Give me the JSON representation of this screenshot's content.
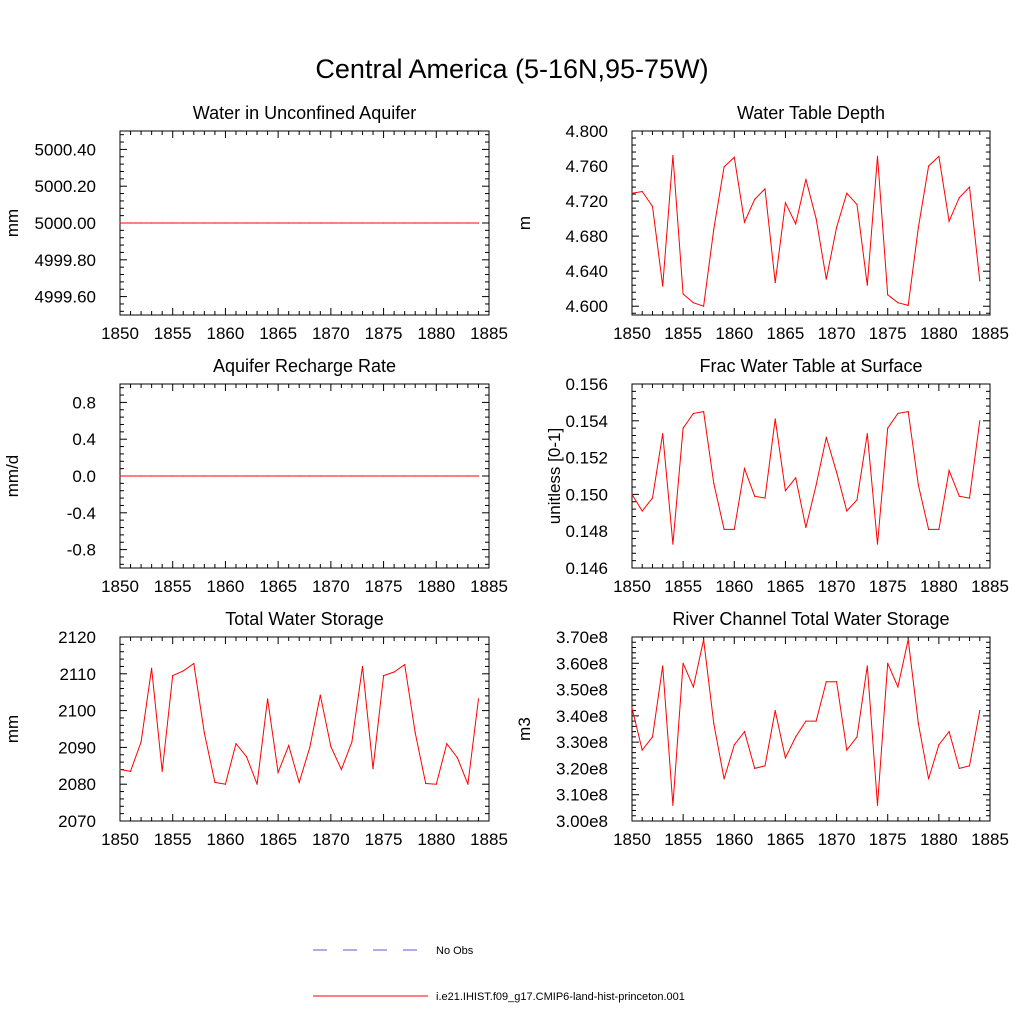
{
  "figure": {
    "title": "Central America (5-16N,95-75W)"
  },
  "legend": {
    "entries": [
      {
        "label": "No Obs",
        "color": "#5b5bd6",
        "style": "dashed"
      },
      {
        "label": "i.e21.IHIST.f09_g17.CMIP6-land-hist-princeton.001",
        "color": "#ff0000",
        "style": "solid"
      }
    ]
  },
  "chart_data": [
    {
      "type": "line",
      "title": "Water in Unconfined Aquifer",
      "ylabel": "mm",
      "xlim": [
        1850,
        1885
      ],
      "ylim": [
        4999.5,
        5000.5
      ],
      "x_ticks": [
        "1850",
        "1855",
        "1860",
        "1865",
        "1870",
        "1875",
        "1880",
        "1885"
      ],
      "y_tick_values": [
        4999.6,
        4999.8,
        5000.0,
        5000.2,
        5000.4
      ],
      "y_ticks": [
        "4999.60",
        "4999.80",
        "5000.00",
        "5000.20",
        "5000.40"
      ],
      "series": [
        {
          "color": "#ff0000",
          "x": [
            1850,
            1851,
            1852,
            1853,
            1854,
            1855,
            1856,
            1857,
            1858,
            1859,
            1860,
            1861,
            1862,
            1863,
            1864,
            1865,
            1866,
            1867,
            1868,
            1869,
            1870,
            1871,
            1872,
            1873,
            1874,
            1875,
            1876,
            1877,
            1878,
            1879,
            1880,
            1881,
            1882,
            1883,
            1884
          ],
          "values": [
            5000,
            5000,
            5000,
            5000,
            5000,
            5000,
            5000,
            5000,
            5000,
            5000,
            5000,
            5000,
            5000,
            5000,
            5000,
            5000,
            5000,
            5000,
            5000,
            5000,
            5000,
            5000,
            5000,
            5000,
            5000,
            5000,
            5000,
            5000,
            5000,
            5000,
            5000,
            5000,
            5000,
            5000,
            5000
          ]
        }
      ]
    },
    {
      "type": "line",
      "title": "Water Table Depth",
      "ylabel": "m",
      "xlim": [
        1850,
        1885
      ],
      "ylim": [
        4.59,
        4.8
      ],
      "x_ticks": [
        "1850",
        "1855",
        "1860",
        "1865",
        "1870",
        "1875",
        "1880",
        "1885"
      ],
      "y_tick_values": [
        4.6,
        4.64,
        4.68,
        4.72,
        4.76,
        4.8
      ],
      "y_ticks": [
        "4.600",
        "4.640",
        "4.680",
        "4.720",
        "4.760",
        "4.800"
      ],
      "series": [
        {
          "color": "#ff0000",
          "x": [
            1850,
            1851,
            1852,
            1853,
            1854,
            1855,
            1856,
            1857,
            1858,
            1859,
            1860,
            1861,
            1862,
            1863,
            1864,
            1865,
            1866,
            1867,
            1868,
            1869,
            1870,
            1871,
            1872,
            1873,
            1874,
            1875,
            1876,
            1877,
            1878,
            1879,
            1880,
            1881,
            1882,
            1883,
            1884
          ],
          "values": [
            4.729,
            4.731,
            4.714,
            4.623,
            4.772,
            4.614,
            4.604,
            4.6,
            4.688,
            4.759,
            4.77,
            4.696,
            4.722,
            4.734,
            4.627,
            4.718,
            4.694,
            4.745,
            4.7,
            4.631,
            4.69,
            4.729,
            4.716,
            4.624,
            4.771,
            4.613,
            4.604,
            4.601,
            4.69,
            4.76,
            4.771,
            4.697,
            4.724,
            4.736,
            4.629
          ]
        }
      ]
    },
    {
      "type": "line",
      "title": "Aquifer Recharge Rate",
      "ylabel": "mm/d",
      "xlim": [
        1850,
        1885
      ],
      "ylim": [
        -1.0,
        1.0
      ],
      "x_ticks": [
        "1850",
        "1855",
        "1860",
        "1865",
        "1870",
        "1875",
        "1880",
        "1885"
      ],
      "y_tick_values": [
        -0.8,
        -0.4,
        0.0,
        0.4,
        0.8
      ],
      "y_ticks": [
        "-0.8",
        "-0.4",
        "0.0",
        "0.4",
        "0.8"
      ],
      "series": [
        {
          "color": "#ff0000",
          "x": [
            1850,
            1851,
            1852,
            1853,
            1854,
            1855,
            1856,
            1857,
            1858,
            1859,
            1860,
            1861,
            1862,
            1863,
            1864,
            1865,
            1866,
            1867,
            1868,
            1869,
            1870,
            1871,
            1872,
            1873,
            1874,
            1875,
            1876,
            1877,
            1878,
            1879,
            1880,
            1881,
            1882,
            1883,
            1884
          ],
          "values": [
            0,
            0,
            0,
            0,
            0,
            0,
            0,
            0,
            0,
            0,
            0,
            0,
            0,
            0,
            0,
            0,
            0,
            0,
            0,
            0,
            0,
            0,
            0,
            0,
            0,
            0,
            0,
            0,
            0,
            0,
            0,
            0,
            0,
            0,
            0
          ]
        }
      ]
    },
    {
      "type": "line",
      "title": "Frac Water Table at Surface",
      "ylabel": "unitless [0-1]",
      "xlim": [
        1850,
        1885
      ],
      "ylim": [
        0.146,
        0.156
      ],
      "x_ticks": [
        "1850",
        "1855",
        "1860",
        "1865",
        "1870",
        "1875",
        "1880",
        "1885"
      ],
      "y_tick_values": [
        0.146,
        0.148,
        0.15,
        0.152,
        0.154,
        0.156
      ],
      "y_ticks": [
        "0.146",
        "0.148",
        "0.150",
        "0.152",
        "0.154",
        "0.156"
      ],
      "series": [
        {
          "color": "#ff0000",
          "x": [
            1850,
            1851,
            1852,
            1853,
            1854,
            1855,
            1856,
            1857,
            1858,
            1859,
            1860,
            1861,
            1862,
            1863,
            1864,
            1865,
            1866,
            1867,
            1868,
            1869,
            1870,
            1871,
            1872,
            1873,
            1874,
            1875,
            1876,
            1877,
            1878,
            1879,
            1880,
            1881,
            1882,
            1883,
            1884
          ],
          "values": [
            0.15,
            0.1491,
            0.1498,
            0.1533,
            0.1473,
            0.1536,
            0.1544,
            0.1545,
            0.1506,
            0.1481,
            0.1481,
            0.1514,
            0.1499,
            0.1498,
            0.1541,
            0.1502,
            0.1509,
            0.1482,
            0.1505,
            0.1531,
            0.1512,
            0.1491,
            0.1497,
            0.1533,
            0.1473,
            0.1536,
            0.1544,
            0.1545,
            0.1505,
            0.1481,
            0.1481,
            0.1513,
            0.1499,
            0.1498,
            0.154
          ]
        }
      ]
    },
    {
      "type": "line",
      "title": "Total Water Storage",
      "ylabel": "mm",
      "xlim": [
        1850,
        1885
      ],
      "ylim": [
        2070,
        2120
      ],
      "x_ticks": [
        "1850",
        "1855",
        "1860",
        "1865",
        "1870",
        "1875",
        "1880",
        "1885"
      ],
      "y_tick_values": [
        2070,
        2080,
        2090,
        2100,
        2110,
        2120
      ],
      "y_ticks": [
        "2070",
        "2080",
        "2090",
        "2100",
        "2110",
        "2120"
      ],
      "series": [
        {
          "color": "#ff0000",
          "x": [
            1850,
            1851,
            1852,
            1853,
            1854,
            1855,
            1856,
            1857,
            1858,
            1859,
            1860,
            1861,
            1862,
            1863,
            1864,
            1865,
            1866,
            1867,
            1868,
            1869,
            1870,
            1871,
            1872,
            1873,
            1874,
            1875,
            1876,
            1877,
            1878,
            1879,
            1880,
            1881,
            1882,
            1883,
            1884
          ],
          "values": [
            2084,
            2083.5,
            2091.5,
            2111.5,
            2083.5,
            2109.5,
            2110.8,
            2112.8,
            2094,
            2080.5,
            2080,
            2091,
            2087.5,
            2080,
            2103.2,
            2083.2,
            2090.5,
            2080.5,
            2090,
            2104.2,
            2090.2,
            2084,
            2091.5,
            2112,
            2084.2,
            2109.5,
            2110.5,
            2112.5,
            2094,
            2080.2,
            2080,
            2091,
            2087.2,
            2080,
            2103.2
          ]
        }
      ]
    },
    {
      "type": "line",
      "title": "River Channel Total Water Storage",
      "ylabel": "m3",
      "xlim": [
        1850,
        1885
      ],
      "ylim": [
        300000000.0,
        370000000.0
      ],
      "x_ticks": [
        "1850",
        "1855",
        "1860",
        "1865",
        "1870",
        "1875",
        "1880",
        "1885"
      ],
      "y_tick_values": [
        300000000.0,
        310000000.0,
        320000000.0,
        330000000.0,
        340000000.0,
        350000000.0,
        360000000.0,
        370000000.0
      ],
      "y_ticks": [
        "3.00e8",
        "3.10e8",
        "3.20e8",
        "3.30e8",
        "3.40e8",
        "3.50e8",
        "3.60e8",
        "3.70e8"
      ],
      "series": [
        {
          "color": "#ff0000",
          "x": [
            1850,
            1851,
            1852,
            1853,
            1854,
            1855,
            1856,
            1857,
            1858,
            1859,
            1860,
            1861,
            1862,
            1863,
            1864,
            1865,
            1866,
            1867,
            1868,
            1869,
            1870,
            1871,
            1872,
            1873,
            1874,
            1875,
            1876,
            1877,
            1878,
            1879,
            1880,
            1881,
            1882,
            1883,
            1884
          ],
          "values": [
            343000000.0,
            327000000.0,
            332000000.0,
            359000000.0,
            306000000.0,
            360000000.0,
            351000000.0,
            369000000.0,
            337000000.0,
            316000000.0,
            329000000.0,
            334000000.0,
            320000000.0,
            321000000.0,
            342000000.0,
            324000000.0,
            332000000.0,
            338000000.0,
            338000000.0,
            353000000.0,
            353000000.0,
            327000000.0,
            332000000.0,
            359000000.0,
            306000000.0,
            360000000.0,
            351000000.0,
            369000000.0,
            337000000.0,
            316000000.0,
            329000000.0,
            334000000.0,
            320000000.0,
            321000000.0,
            342000000.0
          ]
        }
      ]
    }
  ]
}
